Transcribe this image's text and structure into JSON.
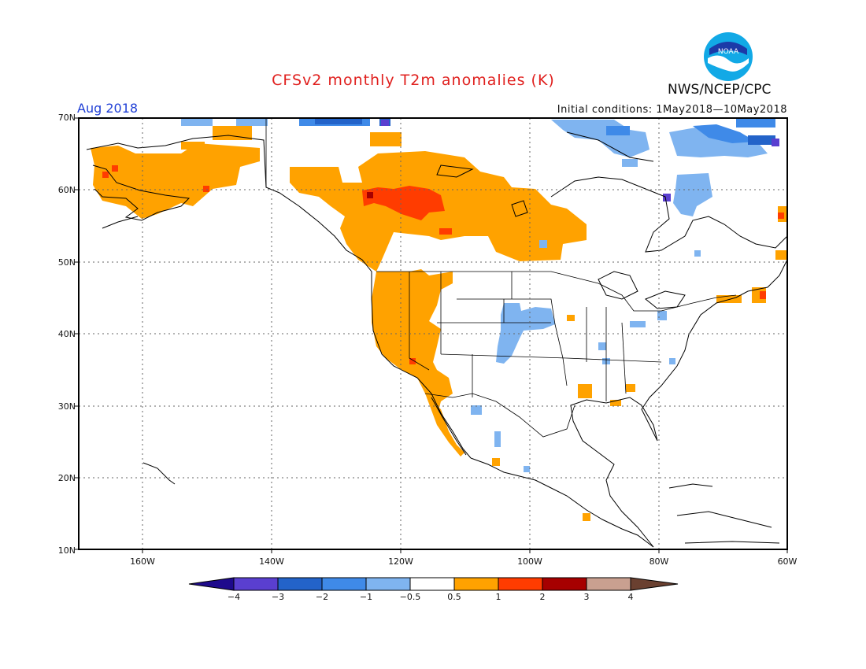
{
  "header": {
    "title": "CFSv2 monthly T2m anomalies (K)",
    "month": "Aug 2018",
    "initial_conditions": "Initial conditions: 1May2018—10May2018",
    "agency": "NWS/NCEP/CPC",
    "logo_text": "NOAA"
  },
  "axes": {
    "lat_labels": [
      "70N",
      "60N",
      "50N",
      "40N",
      "30N",
      "20N",
      "10N"
    ],
    "lon_labels": [
      "160W",
      "140W",
      "120W",
      "100W",
      "80W",
      "60W"
    ]
  },
  "colorbar": {
    "labels": [
      "−4",
      "−3",
      "−2",
      "−1",
      "−0.5",
      "0.5",
      "1",
      "2",
      "3",
      "4"
    ],
    "colors": [
      "#1e0a8c",
      "#5a3fd0",
      "#2363c9",
      "#3f8ae8",
      "#7fb4f0",
      "#ffffff",
      "#ffa200",
      "#ff3c00",
      "#a60000",
      "#c9a090",
      "#6a4030"
    ]
  },
  "colors": {
    "anomaly_0_5_1": "#ffa200",
    "anomaly_1_2": "#ff3c00",
    "anomaly_2_3": "#a60000",
    "anomaly_neg_0_5_1": "#7fb4f0",
    "anomaly_neg_1_2": "#3f8ae8",
    "anomaly_neg_2_3": "#2363c9",
    "anomaly_neg_3_4": "#5a3fd0"
  }
}
